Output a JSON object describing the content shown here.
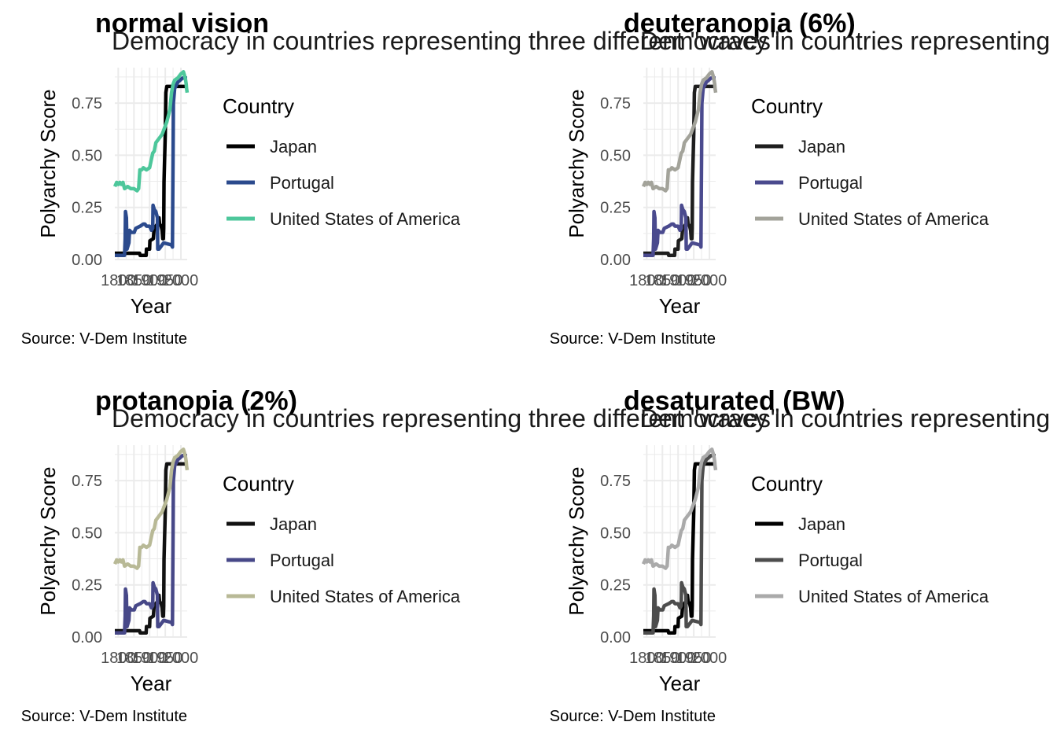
{
  "chart_data": [
    {
      "type": "line",
      "panel_title": "normal vision",
      "subtitle": "Democracy in countries representing three different \"waves\"",
      "xlabel": "Year",
      "ylabel": "Polyarchy Score",
      "caption": "Source: V-Dem Institute",
      "legend_title": "Country",
      "legend_position": "right",
      "grid": true,
      "xlim": [
        1789,
        2020
      ],
      "ylim": [
        0,
        0.92
      ],
      "x_ticks": [
        "1800",
        "1850",
        "1900",
        "1950",
        "2000"
      ],
      "y_ticks": [
        "0.00",
        "0.25",
        "0.50",
        "0.75"
      ],
      "series": [
        {
          "name": "Japan",
          "color": "#000000"
        },
        {
          "name": "Portugal",
          "color": "#2b4a8d"
        },
        {
          "name": "United States of America",
          "color": "#4dc79b"
        }
      ]
    },
    {
      "type": "line",
      "panel_title": "deuteranopia (6%)",
      "subtitle": "Democracy in countries representing three different \"waves\"",
      "xlabel": "Year",
      "ylabel": "Polyarchy Score",
      "caption": "Source: V-Dem Institute",
      "legend_title": "Country",
      "legend_position": "right",
      "grid": true,
      "xlim": [
        1789,
        2020
      ],
      "ylim": [
        0,
        0.92
      ],
      "x_ticks": [
        "1800",
        "1850",
        "1900",
        "1950",
        "2000"
      ],
      "y_ticks": [
        "0.00",
        "0.25",
        "0.50",
        "0.75"
      ],
      "series": [
        {
          "name": "Japan",
          "color": "#1e1e1e"
        },
        {
          "name": "Portugal",
          "color": "#4a4a8e"
        },
        {
          "name": "United States of America",
          "color": "#a3a39a"
        }
      ]
    },
    {
      "type": "line",
      "panel_title": "protanopia (2%)",
      "subtitle": "Democracy in countries representing three different \"waves\"",
      "xlabel": "Year",
      "ylabel": "Polyarchy Score",
      "caption": "Source: V-Dem Institute",
      "legend_title": "Country",
      "legend_position": "right",
      "grid": true,
      "xlim": [
        1789,
        2020
      ],
      "ylim": [
        0,
        0.92
      ],
      "x_ticks": [
        "1800",
        "1850",
        "1900",
        "1950",
        "2000"
      ],
      "y_ticks": [
        "0.00",
        "0.25",
        "0.50",
        "0.75"
      ],
      "series": [
        {
          "name": "Japan",
          "color": "#111111"
        },
        {
          "name": "Portugal",
          "color": "#474888"
        },
        {
          "name": "United States of America",
          "color": "#b8b996"
        }
      ]
    },
    {
      "type": "line",
      "panel_title": "desaturated (BW)",
      "subtitle": "Democracy in countries representing three different \"waves\"",
      "xlabel": "Year",
      "ylabel": "Polyarchy Score",
      "caption": "Source: V-Dem Institute",
      "legend_title": "Country",
      "legend_position": "right",
      "grid": true,
      "xlim": [
        1789,
        2020
      ],
      "ylim": [
        0,
        0.92
      ],
      "x_ticks": [
        "1800",
        "1850",
        "1900",
        "1950",
        "2000"
      ],
      "y_ticks": [
        "0.00",
        "0.25",
        "0.50",
        "0.75"
      ],
      "series": [
        {
          "name": "Japan",
          "color": "#000000"
        },
        {
          "name": "Portugal",
          "color": "#4d4d4d"
        },
        {
          "name": "United States of America",
          "color": "#aaaaaa"
        }
      ]
    }
  ],
  "series_values": {
    "Japan": [
      [
        1789,
        0.03
      ],
      [
        1868,
        0.03
      ],
      [
        1870,
        0.02
      ],
      [
        1889,
        0.02
      ],
      [
        1890,
        0.05
      ],
      [
        1900,
        0.05
      ],
      [
        1901,
        0.09
      ],
      [
        1912,
        0.1
      ],
      [
        1914,
        0.14
      ],
      [
        1920,
        0.16
      ],
      [
        1925,
        0.17
      ],
      [
        1928,
        0.2
      ],
      [
        1930,
        0.2
      ],
      [
        1932,
        0.17
      ],
      [
        1937,
        0.16
      ],
      [
        1940,
        0.14
      ],
      [
        1942,
        0.1
      ],
      [
        1944,
        0.1
      ],
      [
        1945,
        0.15
      ],
      [
        1946,
        0.37
      ],
      [
        1950,
        0.6
      ],
      [
        1952,
        0.8
      ],
      [
        1955,
        0.83
      ],
      [
        2020,
        0.83
      ]
    ],
    "Portugal": [
      [
        1789,
        0.02
      ],
      [
        1820,
        0.02
      ],
      [
        1822,
        0.1
      ],
      [
        1823,
        0.23
      ],
      [
        1826,
        0.2
      ],
      [
        1828,
        0.05
      ],
      [
        1834,
        0.08
      ],
      [
        1836,
        0.14
      ],
      [
        1842,
        0.13
      ],
      [
        1851,
        0.13
      ],
      [
        1856,
        0.15
      ],
      [
        1870,
        0.16
      ],
      [
        1880,
        0.17
      ],
      [
        1885,
        0.17
      ],
      [
        1890,
        0.16
      ],
      [
        1900,
        0.16
      ],
      [
        1906,
        0.14
      ],
      [
        1910,
        0.15
      ],
      [
        1911,
        0.26
      ],
      [
        1915,
        0.24
      ],
      [
        1920,
        0.23
      ],
      [
        1925,
        0.2
      ],
      [
        1926,
        0.05
      ],
      [
        1930,
        0.05
      ],
      [
        1945,
        0.08
      ],
      [
        1970,
        0.07
      ],
      [
        1973,
        0.06
      ],
      [
        1974,
        0.3
      ],
      [
        1975,
        0.5
      ],
      [
        1976,
        0.75
      ],
      [
        1980,
        0.82
      ],
      [
        1990,
        0.85
      ],
      [
        2005,
        0.87
      ],
      [
        2020,
        0.87
      ]
    ],
    "United States of America": [
      [
        1789,
        0.35
      ],
      [
        1795,
        0.37
      ],
      [
        1800,
        0.36
      ],
      [
        1805,
        0.37
      ],
      [
        1810,
        0.36
      ],
      [
        1815,
        0.37
      ],
      [
        1820,
        0.34
      ],
      [
        1830,
        0.35
      ],
      [
        1840,
        0.34
      ],
      [
        1850,
        0.34
      ],
      [
        1860,
        0.33
      ],
      [
        1865,
        0.34
      ],
      [
        1869,
        0.43
      ],
      [
        1875,
        0.43
      ],
      [
        1880,
        0.44
      ],
      [
        1890,
        0.43
      ],
      [
        1900,
        0.44
      ],
      [
        1910,
        0.51
      ],
      [
        1915,
        0.52
      ],
      [
        1920,
        0.56
      ],
      [
        1925,
        0.57
      ],
      [
        1930,
        0.58
      ],
      [
        1940,
        0.6
      ],
      [
        1945,
        0.62
      ],
      [
        1955,
        0.66
      ],
      [
        1965,
        0.72
      ],
      [
        1970,
        0.8
      ],
      [
        1975,
        0.84
      ],
      [
        1980,
        0.86
      ],
      [
        1990,
        0.87
      ],
      [
        2000,
        0.89
      ],
      [
        2008,
        0.9
      ],
      [
        2012,
        0.88
      ],
      [
        2015,
        0.86
      ],
      [
        2017,
        0.84
      ],
      [
        2018,
        0.82
      ],
      [
        2020,
        0.8
      ]
    ]
  }
}
